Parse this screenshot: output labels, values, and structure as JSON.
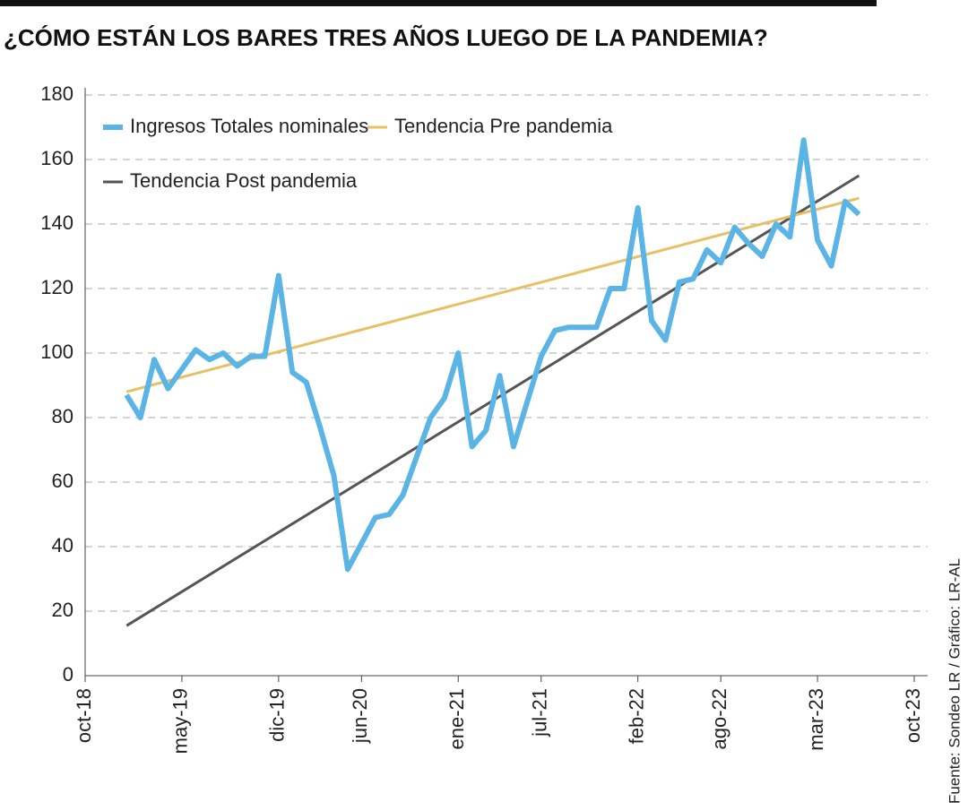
{
  "chart_data": {
    "type": "line",
    "title": "¿CÓMO ESTÁN LOS BARES TRES AÑOS LUEGO DE LA PANDEMIA?",
    "source": "Fuente: Sondeo LR / Gráfico: LR-AL",
    "x": [
      "2019-01",
      "2019-02",
      "2019-03",
      "2019-04",
      "2019-05",
      "2019-06",
      "2019-07",
      "2019-08",
      "2019-09",
      "2019-10",
      "2019-11",
      "2019-12",
      "2020-01",
      "2020-02",
      "2020-03",
      "2020-04",
      "2020-05",
      "2020-06",
      "2020-07",
      "2020-08",
      "2020-09",
      "2020-10",
      "2020-11",
      "2020-12",
      "2021-01",
      "2021-02",
      "2021-03",
      "2021-04",
      "2021-05",
      "2021-06",
      "2021-07",
      "2021-08",
      "2021-09",
      "2021-10",
      "2021-11",
      "2021-12",
      "2022-01",
      "2022-02",
      "2022-03",
      "2022-04",
      "2022-05",
      "2022-06",
      "2022-07",
      "2022-08",
      "2022-09",
      "2022-10",
      "2022-11",
      "2022-12",
      "2023-01",
      "2023-02",
      "2023-03",
      "2023-04",
      "2023-05",
      "2023-06"
    ],
    "series": [
      {
        "name": "Ingresos Totales nominales",
        "color": "#5ab4e5",
        "values": [
          87,
          80,
          98,
          89,
          95,
          101,
          98,
          100,
          96,
          99,
          99,
          124,
          94,
          91,
          77,
          62,
          33,
          41,
          49,
          50,
          56,
          68,
          80,
          86,
          100,
          71,
          76,
          93,
          71,
          85,
          99,
          107,
          108,
          108,
          108,
          120,
          120,
          145,
          110,
          104,
          122,
          123,
          132,
          128,
          139,
          134,
          130,
          140,
          136,
          166,
          135,
          127,
          147,
          143
        ]
      },
      {
        "name": "Tendencia Pre pandemia",
        "color": "#e6c064",
        "x": [
          "2019-01",
          "2023-06"
        ],
        "values": [
          88,
          148
        ]
      },
      {
        "name": "Tendencia Post pandemia",
        "color": "#555555",
        "x": [
          "2019-01",
          "2023-06"
        ],
        "values": [
          15.5,
          155
        ]
      }
    ],
    "xlim": [
      "2018-10",
      "2023-10"
    ],
    "xticks": [
      {
        "value": "2018-10",
        "label": "oct-18"
      },
      {
        "value": "2019-05",
        "label": "may-19"
      },
      {
        "value": "2019-12",
        "label": "dic-19"
      },
      {
        "value": "2020-06",
        "label": "jun-20"
      },
      {
        "value": "2021-01",
        "label": "ene-21"
      },
      {
        "value": "2021-07",
        "label": "jul-21"
      },
      {
        "value": "2022-02",
        "label": "feb-22"
      },
      {
        "value": "2022-08",
        "label": "ago-22"
      },
      {
        "value": "2023-03",
        "label": "mar-23"
      },
      {
        "value": "2023-10",
        "label": "oct-23"
      }
    ],
    "ylim": [
      0,
      180
    ],
    "yticks": [
      0,
      20,
      40,
      60,
      80,
      100,
      120,
      140,
      160,
      180
    ],
    "grid": true
  }
}
